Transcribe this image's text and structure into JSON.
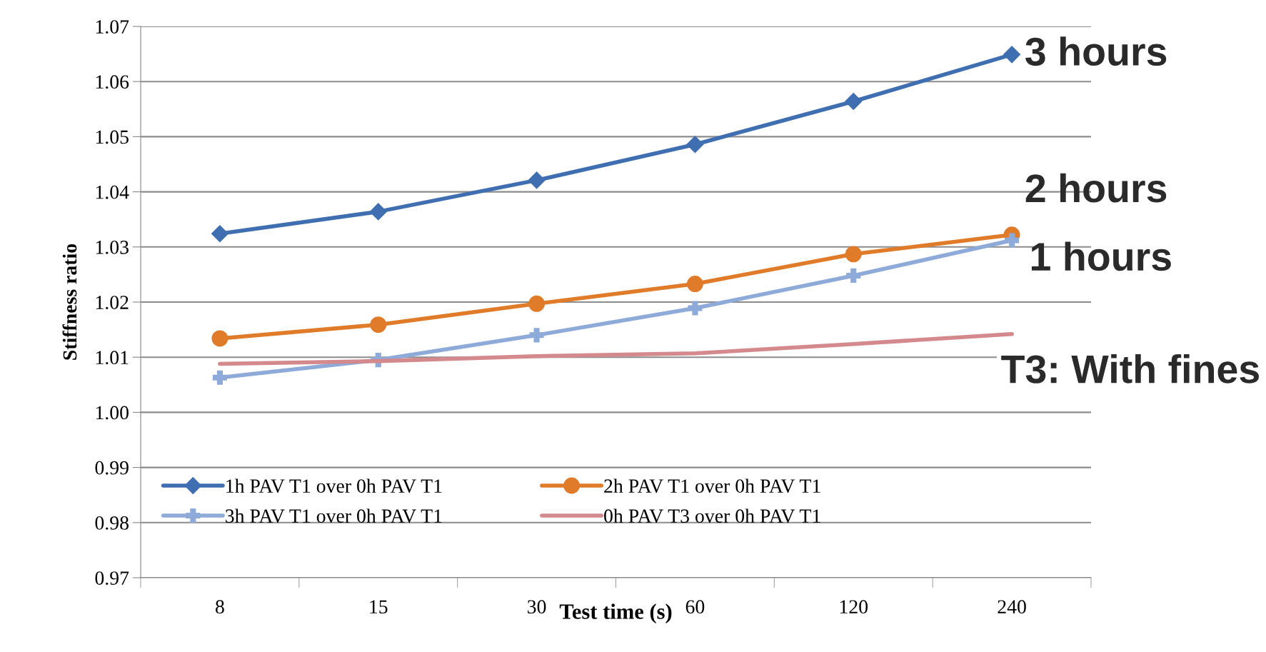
{
  "chart_data": {
    "type": "line",
    "xlabel": "Test time (s)",
    "ylabel": "Stiffness ratio",
    "categories": [
      "8",
      "15",
      "30",
      "60",
      "120",
      "240"
    ],
    "series": [
      {
        "name": "1h PAV T1 over 0h PAV T1",
        "color": "#3f6fb0",
        "marker": "diamond",
        "values": [
          1.0324,
          1.0364,
          1.0421,
          1.0486,
          1.0564,
          1.0649
        ]
      },
      {
        "name": "2h PAV T1 over 0h PAV T1",
        "color": "#e07b2a",
        "marker": "circle",
        "values": [
          1.0134,
          1.0159,
          1.0197,
          1.0233,
          1.0287,
          1.0322
        ]
      },
      {
        "name": "3h PAV T1 over 0h PAV T1",
        "color": "#8eaad8",
        "marker": "cross",
        "values": [
          1.0063,
          1.0095,
          1.014,
          1.0189,
          1.0248,
          1.0312
        ]
      },
      {
        "name": "0h PAV T3 over 0h PAV T1",
        "color": "#d4898c",
        "marker": "none",
        "values": [
          1.0088,
          1.0093,
          1.0102,
          1.0107,
          1.0124,
          1.0142
        ]
      }
    ],
    "ylim": [
      0.97,
      1.07
    ],
    "yticks": [
      {
        "value": 0.97,
        "label": "0.97"
      },
      {
        "value": 0.98,
        "label": "0.98"
      },
      {
        "value": 0.99,
        "label": "0.99"
      },
      {
        "value": 1.0,
        "label": "1.00"
      },
      {
        "value": 1.01,
        "label": "1.01"
      },
      {
        "value": 1.02,
        "label": "1.02"
      },
      {
        "value": 1.03,
        "label": "1.03"
      },
      {
        "value": 1.04,
        "label": "1.04"
      },
      {
        "value": 1.05,
        "label": "1.05"
      },
      {
        "value": 1.06,
        "label": "1.06"
      },
      {
        "value": 1.07,
        "label": "1.07"
      }
    ],
    "grid": "y",
    "legend": "bottom",
    "line_style": "solid",
    "annotations": [
      "3 hours",
      "2 hours",
      "1 hours",
      "T3: With fines"
    ]
  }
}
